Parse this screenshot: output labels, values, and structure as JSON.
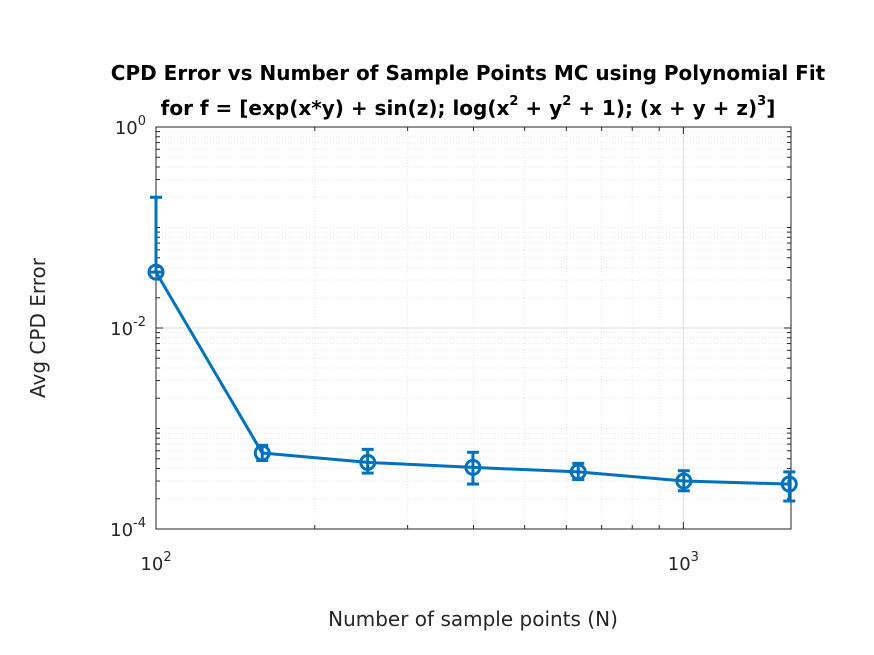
{
  "chart_data": {
    "type": "line",
    "title_line1": "CPD Error vs Number of Sample Points MC using Polynomial Fit",
    "title_line2": {
      "part1": "for f = [exp(x*y) + sin(z); log(x",
      "sup1": "2",
      "part2": " + y",
      "sup2": "2",
      "part3": " + 1); (x + y + z)",
      "sup3": "3",
      "part4": "]"
    },
    "xlabel": "Number of sample points (N)",
    "ylabel": "Avg CPD Error",
    "x_scale": "log",
    "y_scale": "log",
    "xlim": [
      100,
      1600
    ],
    "ylim": [
      0.0001,
      1
    ],
    "x_ticks": [
      {
        "base": "10",
        "exp": "2",
        "value": 100
      },
      {
        "base": "10",
        "exp": "3",
        "value": 1000
      }
    ],
    "y_ticks": [
      {
        "base": "10",
        "exp": "0",
        "value": 1
      },
      {
        "base": "10",
        "exp": "-2",
        "value": 0.01
      },
      {
        "base": "10",
        "exp": "-4",
        "value": 0.0001
      }
    ],
    "grid": true,
    "minor_grid": true,
    "series": [
      {
        "color": "#0072BD",
        "marker": "circle",
        "x": [
          100,
          159,
          252,
          399,
          632,
          1002,
          1588
        ],
        "y": [
          0.036,
          0.00057,
          0.00046,
          0.00041,
          0.00037,
          0.0003,
          0.00028
        ],
        "err_low": [
          0.036,
          0.00048,
          0.00036,
          0.00028,
          0.00031,
          0.00024,
          0.00019
        ],
        "err_high": [
          0.2,
          0.00068,
          0.00062,
          0.00058,
          0.00045,
          0.00038,
          0.00037
        ]
      }
    ]
  }
}
